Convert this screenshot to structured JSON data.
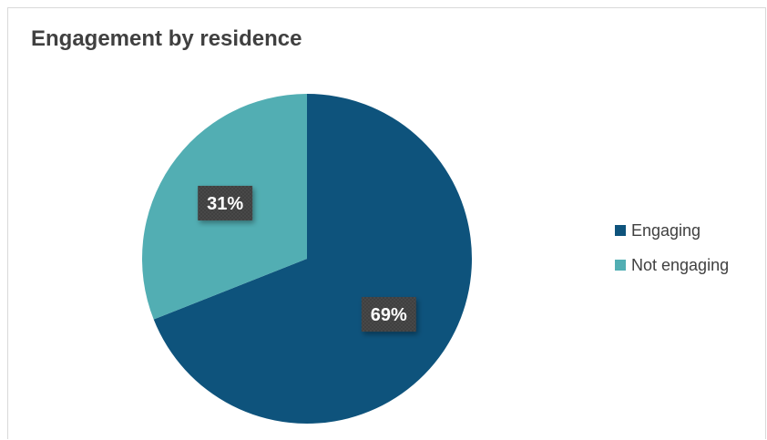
{
  "chart_data": {
    "type": "pie",
    "title": "Engagement by residence",
    "categories": [
      "Engaging",
      "Not engaging"
    ],
    "values": [
      69,
      31
    ],
    "data_labels": [
      "69%",
      "31%"
    ],
    "colors": [
      "#0e537c",
      "#52aeb3"
    ],
    "label_box_color": "#3f3f3f",
    "legend_placement": "right"
  }
}
